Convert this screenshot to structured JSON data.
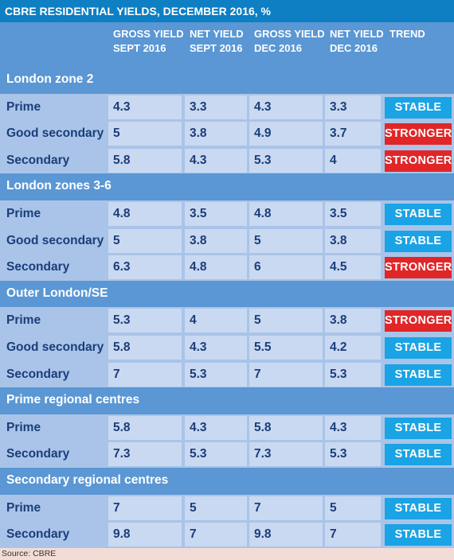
{
  "title": "CBRE RESIDENTIAL YIELDS, DECEMBER 2016, %",
  "columns": [
    {
      "line1": "GROSS YIELD",
      "line2": "SEPT 2016"
    },
    {
      "line1": "NET YIELD",
      "line2": "SEPT 2016"
    },
    {
      "line1": "GROSS YIELD",
      "line2": "DEC 2016"
    },
    {
      "line1": "NET YIELD",
      "line2": "DEC 2016"
    },
    {
      "line1": "TREND",
      "line2": ""
    }
  ],
  "colors": {
    "title_bg": "#0d7fc2",
    "group_bg": "#5a97d4",
    "row_bg": "#a9c4e8",
    "cell_bg": "#c9d9f1",
    "stable": "#1aa3e5",
    "stronger": "#e12628"
  },
  "groups": [
    {
      "name": "London zone 2",
      "rows": [
        {
          "label": "Prime",
          "gross_sept": "4.3",
          "net_sept": "3.3",
          "gross_dec": "4.3",
          "net_dec": "3.3",
          "trend": "STABLE"
        },
        {
          "label": "Good secondary",
          "gross_sept": "5",
          "net_sept": "3.8",
          "gross_dec": "4.9",
          "net_dec": "3.7",
          "trend": "STRONGER"
        },
        {
          "label": "Secondary",
          "gross_sept": "5.8",
          "net_sept": "4.3",
          "gross_dec": "5.3",
          "net_dec": "4",
          "trend": "STRONGER"
        }
      ]
    },
    {
      "name": "London zones 3-6",
      "rows": [
        {
          "label": "Prime",
          "gross_sept": "4.8",
          "net_sept": "3.5",
          "gross_dec": "4.8",
          "net_dec": "3.5",
          "trend": "STABLE"
        },
        {
          "label": "Good secondary",
          "gross_sept": "5",
          "net_sept": "3.8",
          "gross_dec": "5",
          "net_dec": "3.8",
          "trend": "STABLE"
        },
        {
          "label": "Secondary",
          "gross_sept": "6.3",
          "net_sept": "4.8",
          "gross_dec": "6",
          "net_dec": "4.5",
          "trend": "STRONGER"
        }
      ]
    },
    {
      "name": "Outer London/SE",
      "rows": [
        {
          "label": "Prime",
          "gross_sept": "5.3",
          "net_sept": "4",
          "gross_dec": "5",
          "net_dec": "3.8",
          "trend": "STRONGER"
        },
        {
          "label": "Good secondary",
          "gross_sept": "5.8",
          "net_sept": "4.3",
          "gross_dec": "5.5",
          "net_dec": "4.2",
          "trend": "STABLE"
        },
        {
          "label": "Secondary",
          "gross_sept": "7",
          "net_sept": "5.3",
          "gross_dec": "7",
          "net_dec": "5.3",
          "trend": "STABLE"
        }
      ]
    },
    {
      "name": "Prime regional centres",
      "rows": [
        {
          "label": "Prime",
          "gross_sept": "5.8",
          "net_sept": "4.3",
          "gross_dec": "5.8",
          "net_dec": "4.3",
          "trend": "STABLE"
        },
        {
          "label": "Secondary",
          "gross_sept": "7.3",
          "net_sept": "5.3",
          "gross_dec": "7.3",
          "net_dec": "5.3",
          "trend": "STABLE"
        }
      ]
    },
    {
      "name": "Secondary regional centres",
      "rows": [
        {
          "label": "Prime",
          "gross_sept": "7",
          "net_sept": "5",
          "gross_dec": "7",
          "net_dec": "5",
          "trend": "STABLE"
        },
        {
          "label": "Secondary",
          "gross_sept": "9.8",
          "net_sept": "7",
          "gross_dec": "9.8",
          "net_dec": "7",
          "trend": "STABLE"
        }
      ]
    }
  ],
  "source": "Source: CBRE"
}
